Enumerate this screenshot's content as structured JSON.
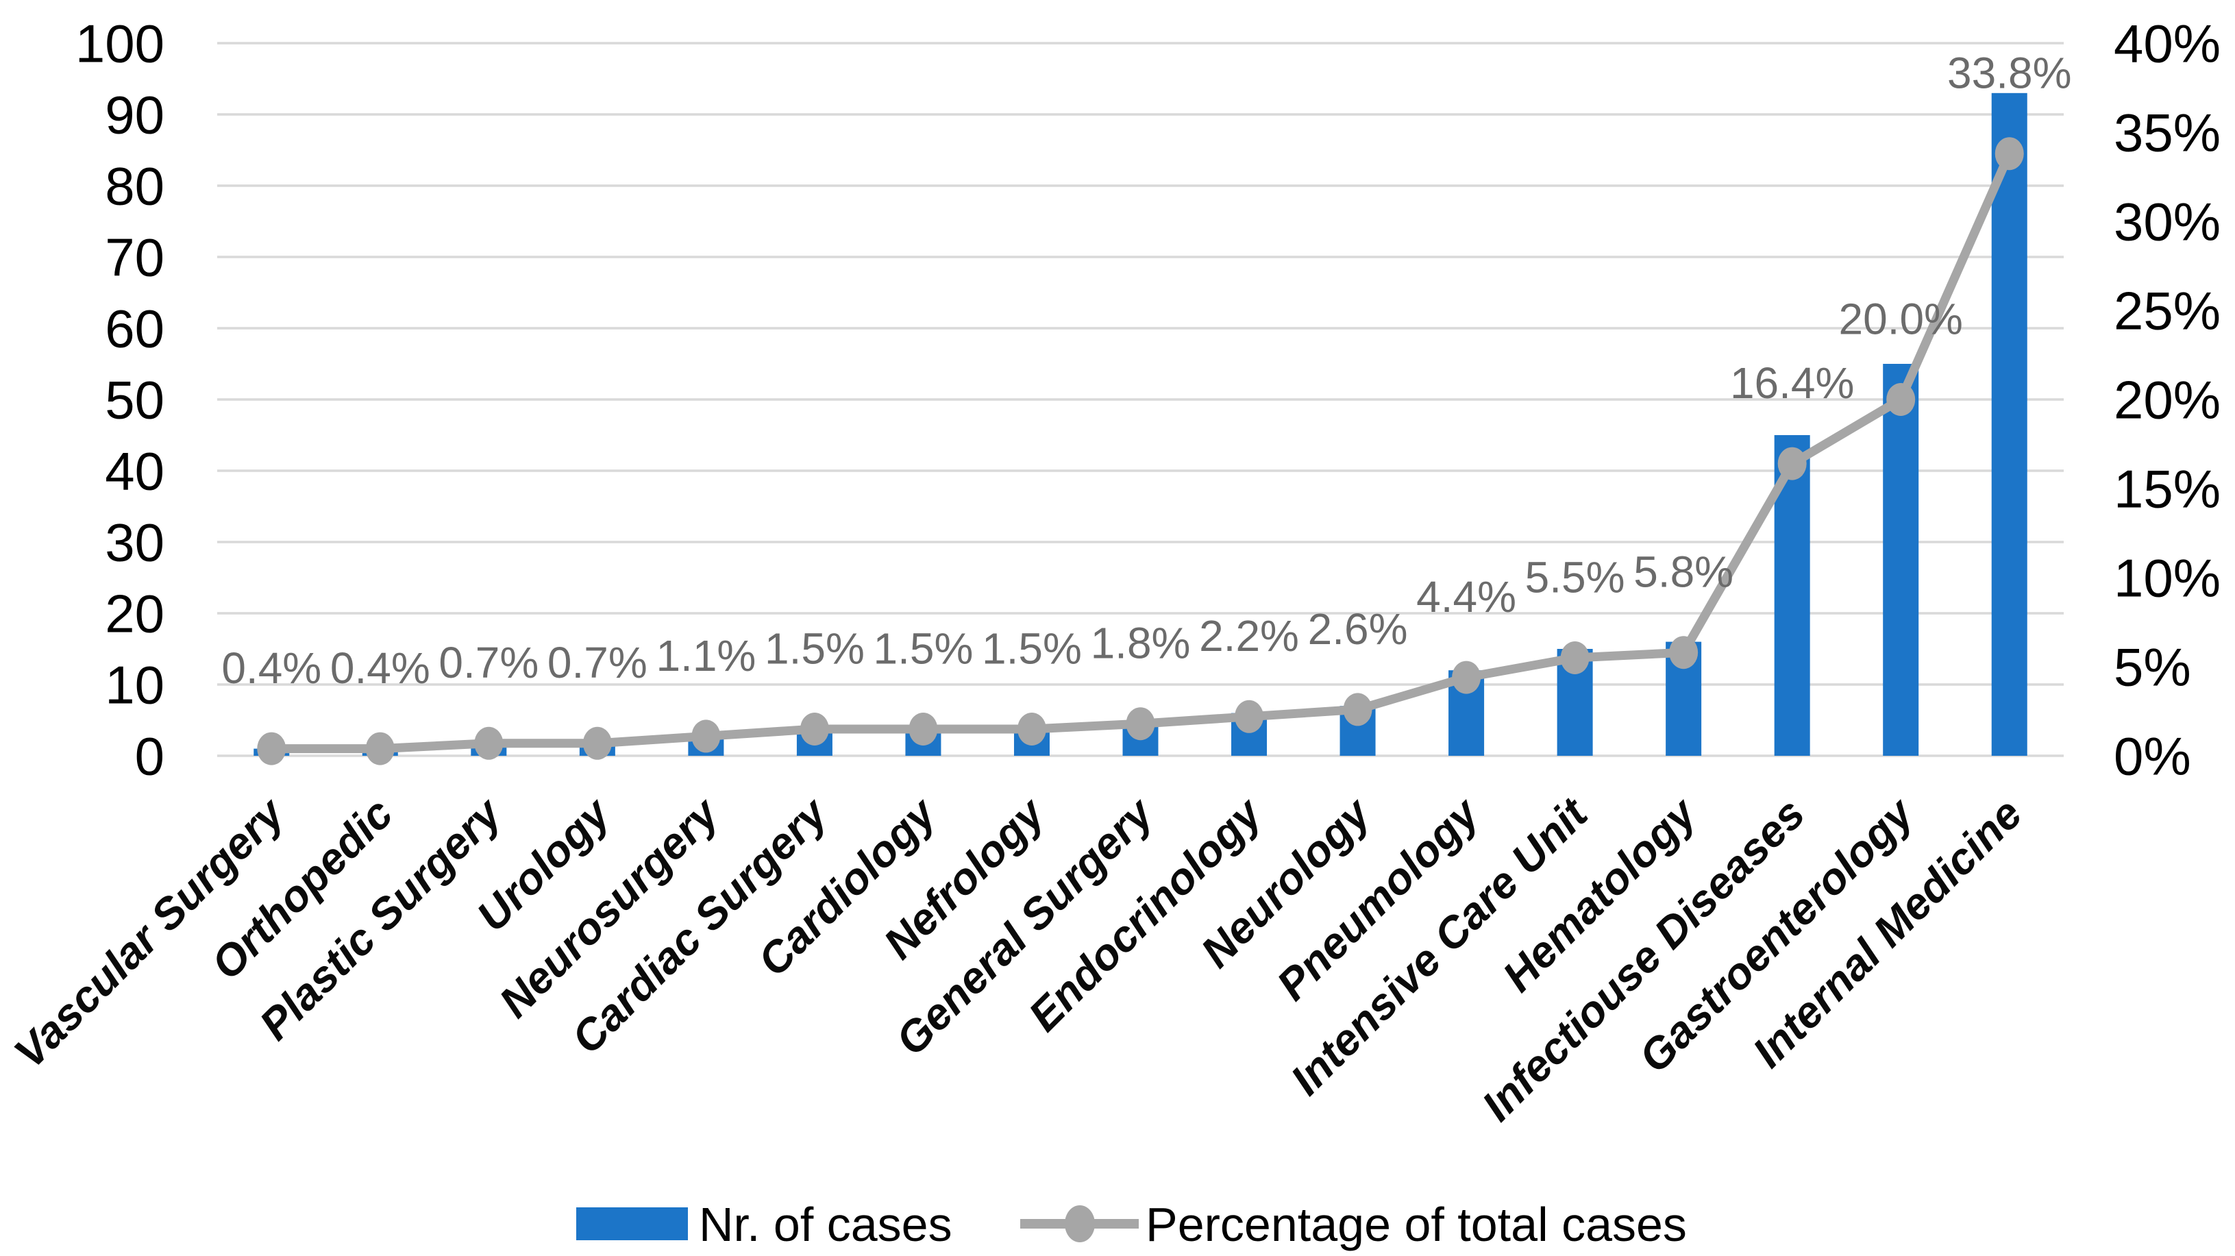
{
  "chart_data": {
    "type": "bar",
    "subtype": "bar+line-combo",
    "title": "",
    "categories": [
      "Vascular Surgery",
      "Orthopedic",
      "Plastic Surgery",
      "Urology",
      "Neurosurgery",
      "Cardiac Surgery",
      "Cardiology",
      "Nefrology",
      "General Surgery",
      "Endocrinology",
      "Neurology",
      "Pneumology",
      "Intensive Care Unit",
      "Hematology",
      "Infectiouse Diseases",
      "Gastroenterology",
      "Internal Medicine"
    ],
    "series": [
      {
        "name": "Nr. of cases",
        "type": "bar",
        "axis": "left",
        "values": [
          1,
          1,
          2,
          2,
          3,
          4,
          4,
          4,
          5,
          6,
          7,
          12,
          15,
          16,
          45,
          55,
          93
        ]
      },
      {
        "name": "Percentage of total cases",
        "type": "line",
        "axis": "right",
        "values_percent": [
          0.4,
          0.4,
          0.7,
          0.7,
          1.1,
          1.5,
          1.5,
          1.5,
          1.8,
          2.2,
          2.6,
          4.4,
          5.5,
          5.8,
          16.4,
          20.0,
          33.8
        ],
        "point_labels": [
          "0.4%",
          "0.4%",
          "0.7%",
          "0.7%",
          "1.1%",
          "1.5%",
          "1.5%",
          "1.5%",
          "1.8%",
          "2.2%",
          "2.6%",
          "4.4%",
          "5.5%",
          "5.8%",
          "16.4%",
          "20.0%",
          "33.8%"
        ]
      }
    ],
    "left_axis": {
      "min": 0,
      "max": 100,
      "step": 10,
      "tick_labels": [
        "0",
        "10",
        "20",
        "30",
        "40",
        "50",
        "60",
        "70",
        "80",
        "90",
        "100"
      ]
    },
    "right_axis": {
      "min": 0,
      "max": 40,
      "step": 5,
      "tick_labels": [
        "0%",
        "5%",
        "10%",
        "15%",
        "20%",
        "25%",
        "30%",
        "35%",
        "40%"
      ]
    },
    "grid": true,
    "legend_position": "bottom"
  },
  "colors": {
    "bar": "#1C75C8",
    "line": "#A6A6A6",
    "marker": "#A6A6A6",
    "grid": "#D9D9D9",
    "data_label": "#6B6B6B",
    "axis_text": "#000000"
  }
}
